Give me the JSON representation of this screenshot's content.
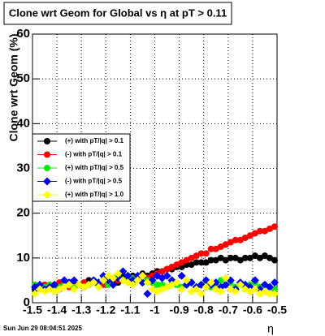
{
  "chart_data": {
    "type": "scatter",
    "title": "Clone wrt Geom for Global vs   η at pT > 0.11",
    "y_label": "Clone wrt Geom (%)",
    "x_label": "η",
    "footer": "Sun Jun 29 08:04:51 2025",
    "xlim": [
      -1.5,
      -0.5
    ],
    "ylim": [
      0,
      60
    ],
    "xticks": [
      -1.5,
      -1.4,
      -1.3,
      -1.2,
      -1.1,
      -1,
      -0.9,
      -0.8,
      -0.7,
      -0.6,
      -0.5
    ],
    "yticks": [
      0,
      10,
      20,
      30,
      40,
      50,
      60
    ],
    "grid": true,
    "legend": "left",
    "x": [
      -1.49,
      -1.47,
      -1.45,
      -1.43,
      -1.41,
      -1.39,
      -1.37,
      -1.35,
      -1.33,
      -1.31,
      -1.29,
      -1.27,
      -1.25,
      -1.23,
      -1.21,
      -1.19,
      -1.17,
      -1.15,
      -1.13,
      -1.11,
      -1.09,
      -1.07,
      -1.05,
      -1.03,
      -1.01,
      -0.99,
      -0.97,
      -0.95,
      -0.93,
      -0.91,
      -0.89,
      -0.87,
      -0.85,
      -0.83,
      -0.81,
      -0.79,
      -0.77,
      -0.75,
      -0.73,
      -0.71,
      -0.69,
      -0.67,
      -0.65,
      -0.63,
      -0.61,
      -0.59,
      -0.57,
      -0.55,
      -0.53,
      -0.51
    ],
    "series": [
      {
        "name": "(+) with pT/|q| > 0.1",
        "color": "#000000",
        "marker": "circle",
        "values": [
          3,
          3.5,
          3,
          4,
          3.5,
          3,
          4,
          4.5,
          3.5,
          4,
          4,
          5,
          4.5,
          4,
          5,
          5.5,
          5,
          4.5,
          6,
          5.5,
          6,
          5,
          6.5,
          6,
          6.5,
          7,
          7,
          7.5,
          7.5,
          8,
          8,
          8.5,
          8.5,
          9,
          9,
          9,
          9.5,
          9.5,
          10,
          9.5,
          10,
          10,
          9.5,
          10,
          10,
          10.5,
          10,
          10.5,
          10,
          9.5
        ]
      },
      {
        "name": "(-) with pT/|q| > 0.1",
        "color": "#ff0000",
        "marker": "circle",
        "values": [
          4,
          3.5,
          4,
          3.5,
          4,
          4.5,
          4,
          3.5,
          4,
          4,
          4.5,
          4,
          5,
          4.5,
          4,
          5,
          5.5,
          5,
          5,
          6,
          5.5,
          5,
          6,
          5.5,
          6,
          6.5,
          7,
          7.5,
          8,
          8.5,
          9,
          9.5,
          10,
          10.5,
          11,
          11,
          12,
          12,
          12.5,
          13,
          13.5,
          14,
          14,
          14.5,
          15,
          15.5,
          16,
          16,
          16.5,
          17
        ]
      },
      {
        "name": "(+) with pT/|q| > 0.5",
        "color": "#00ee00",
        "marker": "circle",
        "values": [
          4,
          3,
          3.5,
          4,
          3,
          3.5,
          4,
          4.5,
          3.5,
          4,
          3.5,
          4,
          5,
          4.5,
          5,
          4,
          5.5,
          6,
          5,
          6,
          5.5,
          5,
          4.5,
          5,
          4.5,
          4,
          4,
          3.5,
          4.5,
          4,
          3.5,
          4,
          4.5,
          3,
          4,
          4.5,
          3.5,
          4,
          5,
          4,
          4.5,
          3.5,
          4,
          3,
          4,
          4.5,
          3.5,
          4,
          3.5,
          3
        ]
      },
      {
        "name": "(-) with pT/|q| > 0.5",
        "color": "#0000ff",
        "marker": "diamond",
        "values": [
          3.5,
          4,
          3,
          3.5,
          4,
          3,
          5,
          4.5,
          5,
          4,
          3.5,
          4,
          5,
          4.5,
          6,
          5,
          4,
          5.5,
          7,
          6,
          5,
          6,
          4.5,
          2,
          5,
          6,
          5.5,
          6,
          5,
          4.5,
          6,
          4,
          4.5,
          3.5,
          4,
          5,
          4,
          4.5,
          3.5,
          4,
          5,
          3,
          4.5,
          4,
          3.5,
          5,
          3,
          4,
          3.5,
          4.5
        ]
      },
      {
        "name": "(+) with pT/|q| > 1.0",
        "color": "#ffff00",
        "marker": "diamond",
        "values": [
          2,
          3,
          2.5,
          3,
          2.5,
          3,
          3.5,
          4,
          3,
          4,
          3.5,
          4,
          4.5,
          3.5,
          5,
          6,
          5.5,
          6.5,
          5,
          4.5,
          4,
          5,
          6,
          4.5,
          3,
          2.5,
          3,
          3.5,
          4,
          4.5,
          3,
          5,
          2.5,
          3,
          2,
          3.5,
          4.5,
          3,
          2.5,
          5.5,
          3,
          2.5,
          4,
          3,
          2.5,
          3,
          2,
          2.5,
          2,
          2
        ]
      }
    ]
  }
}
